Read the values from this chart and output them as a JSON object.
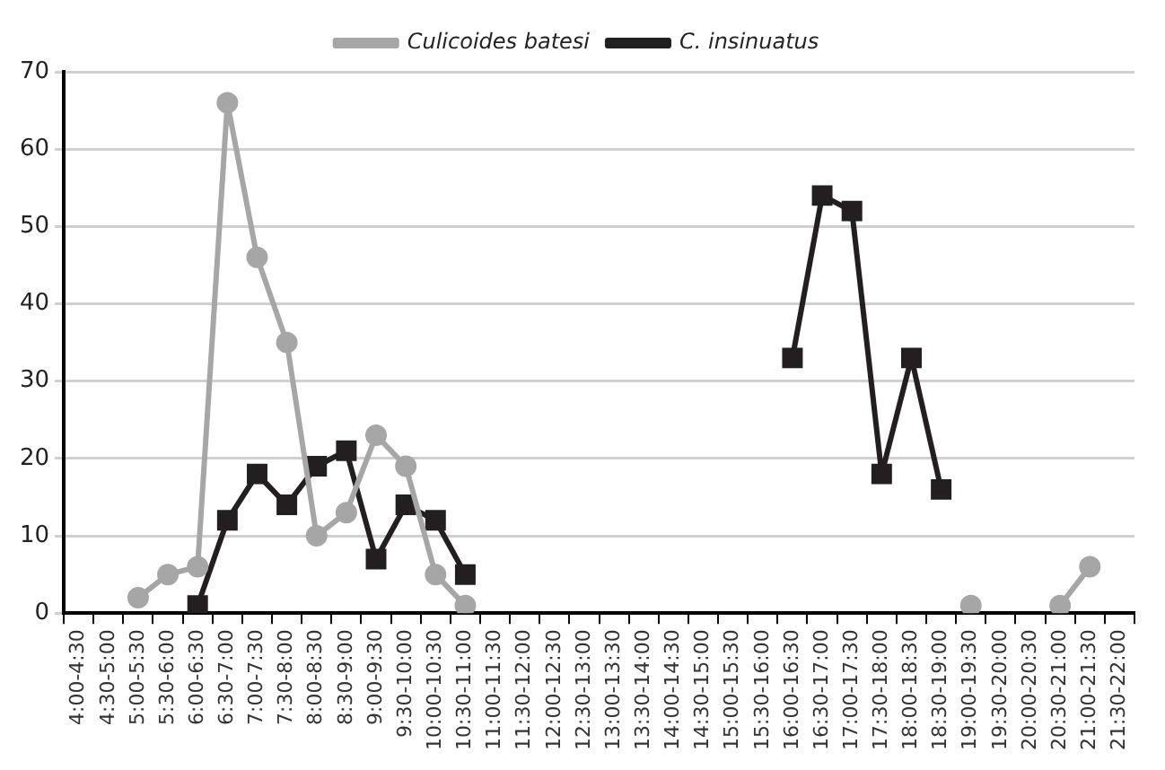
{
  "chart_data": {
    "type": "line",
    "categories": [
      "4:00-4:30",
      "4:30-5:00",
      "5:00-5:30",
      "5:30-6:00",
      "6:00-6:30",
      "6:30-7:00",
      "7:00-7:30",
      "7:30-8:00",
      "8:00-8:30",
      "8:30-9:00",
      "9:00-9:30",
      "9:30-10:00",
      "10:00-10:30",
      "10:30-11:00",
      "11:00-11:30",
      "11:30-12:00",
      "12:00-12:30",
      "12:30-13:00",
      "13:00-13:30",
      "13:30-14:00",
      "14:00-14:30",
      "14:30-15:00",
      "15:00-15:30",
      "15:30-16:00",
      "16:00-16:30",
      "16:30-17:00",
      "17:00-17:30",
      "17:30-18:00",
      "18:00-18:30",
      "18:30-19:00",
      "19:00-19:30",
      "19:30-20:00",
      "20:00-20:30",
      "20:30-21:00",
      "21:00-21:30",
      "21:30-22:00"
    ],
    "series": [
      {
        "name": "Culicoides batesi",
        "color": "#a6a6a6",
        "marker": "circle",
        "values": [
          null,
          null,
          2,
          5,
          6,
          66,
          46,
          35,
          10,
          13,
          23,
          19,
          5,
          1,
          null,
          null,
          null,
          null,
          null,
          null,
          null,
          null,
          null,
          null,
          null,
          null,
          null,
          null,
          null,
          null,
          1,
          null,
          null,
          1,
          6,
          null
        ]
      },
      {
        "name": "C. insinuatus",
        "color": "#231f20",
        "marker": "square",
        "values": [
          null,
          null,
          null,
          null,
          1,
          12,
          18,
          14,
          19,
          21,
          7,
          14,
          12,
          5,
          null,
          null,
          null,
          null,
          null,
          null,
          null,
          null,
          null,
          null,
          33,
          54,
          52,
          18,
          33,
          16,
          null,
          null,
          null,
          null,
          null,
          null
        ]
      }
    ],
    "ylim": [
      0,
      70
    ],
    "yticks": [
      0,
      10,
      20,
      30,
      40,
      50,
      60,
      70
    ],
    "grid": "y",
    "legend": "top",
    "line_style": "solid"
  }
}
